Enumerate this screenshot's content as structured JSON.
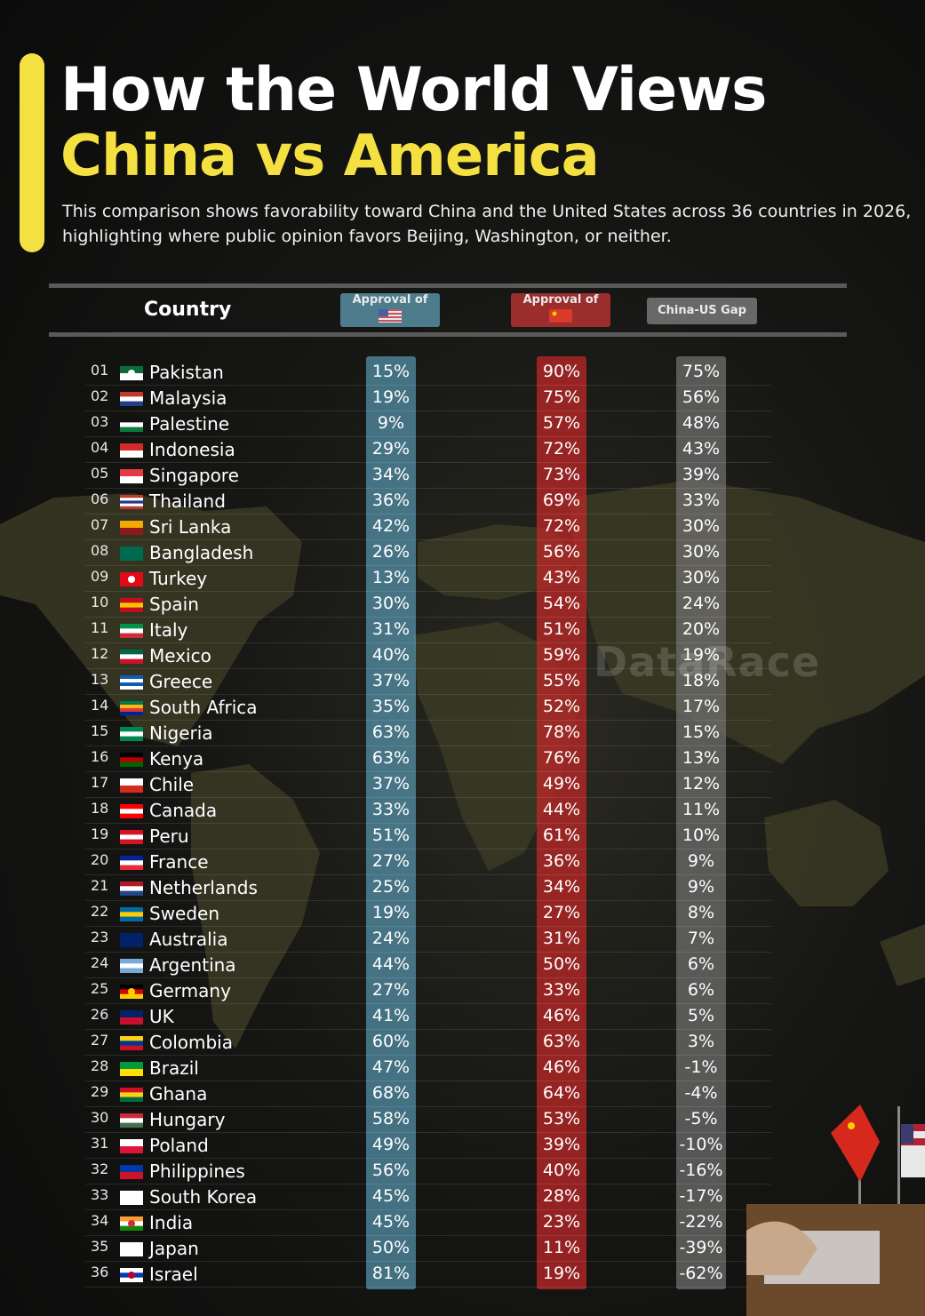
{
  "header": {
    "title_line1": "How the World Views",
    "title_line2": "China vs America",
    "subtitle": "This comparison shows favorability toward China and the United States across 36 countries in 2026, highlighting where public opinion favors Beijing, Washington, or neither."
  },
  "colors": {
    "accent": "#f5e042",
    "usa": "#4d7c8c",
    "china": "#9b2d2d",
    "gap": "#686868"
  },
  "watermark": "DataRace",
  "chart_data": {
    "type": "table",
    "columns": {
      "country": "Country",
      "usa": "Approval of",
      "china": "Approval of",
      "gap": "China-US Gap"
    },
    "column_flags": {
      "usa": "us-flag-icon",
      "china": "china-flag-icon"
    },
    "rows": [
      {
        "rank": "01",
        "country": "Pakistan",
        "usa": "15%",
        "china": "90%",
        "gap": "75%"
      },
      {
        "rank": "02",
        "country": "Malaysia",
        "usa": "19%",
        "china": "75%",
        "gap": "56%"
      },
      {
        "rank": "03",
        "country": "Palestine",
        "usa": "9%",
        "china": "57%",
        "gap": "48%"
      },
      {
        "rank": "04",
        "country": "Indonesia",
        "usa": "29%",
        "china": "72%",
        "gap": "43%"
      },
      {
        "rank": "05",
        "country": "Singapore",
        "usa": "34%",
        "china": "73%",
        "gap": "39%"
      },
      {
        "rank": "06",
        "country": "Thailand",
        "usa": "36%",
        "china": "69%",
        "gap": "33%"
      },
      {
        "rank": "07",
        "country": "Sri Lanka",
        "usa": "42%",
        "china": "72%",
        "gap": "30%"
      },
      {
        "rank": "08",
        "country": "Bangladesh",
        "usa": "26%",
        "china": "56%",
        "gap": "30%"
      },
      {
        "rank": "09",
        "country": "Turkey",
        "usa": "13%",
        "china": "43%",
        "gap": "30%"
      },
      {
        "rank": "10",
        "country": "Spain",
        "usa": "30%",
        "china": "54%",
        "gap": "24%"
      },
      {
        "rank": "11",
        "country": "Italy",
        "usa": "31%",
        "china": "51%",
        "gap": "20%"
      },
      {
        "rank": "12",
        "country": "Mexico",
        "usa": "40%",
        "china": "59%",
        "gap": "19%"
      },
      {
        "rank": "13",
        "country": "Greece",
        "usa": "37%",
        "china": "55%",
        "gap": "18%"
      },
      {
        "rank": "14",
        "country": "South Africa",
        "usa": "35%",
        "china": "52%",
        "gap": "17%"
      },
      {
        "rank": "15",
        "country": "Nigeria",
        "usa": "63%",
        "china": "78%",
        "gap": "15%"
      },
      {
        "rank": "16",
        "country": "Kenya",
        "usa": "63%",
        "china": "76%",
        "gap": "13%"
      },
      {
        "rank": "17",
        "country": "Chile",
        "usa": "37%",
        "china": "49%",
        "gap": "12%"
      },
      {
        "rank": "18",
        "country": "Canada",
        "usa": "33%",
        "china": "44%",
        "gap": "11%"
      },
      {
        "rank": "19",
        "country": "Peru",
        "usa": "51%",
        "china": "61%",
        "gap": "10%"
      },
      {
        "rank": "20",
        "country": "France",
        "usa": "27%",
        "china": "36%",
        "gap": "9%"
      },
      {
        "rank": "21",
        "country": "Netherlands",
        "usa": "25%",
        "china": "34%",
        "gap": "9%"
      },
      {
        "rank": "22",
        "country": "Sweden",
        "usa": "19%",
        "china": "27%",
        "gap": "8%"
      },
      {
        "rank": "23",
        "country": "Australia",
        "usa": "24%",
        "china": "31%",
        "gap": "7%"
      },
      {
        "rank": "24",
        "country": "Argentina",
        "usa": "44%",
        "china": "50%",
        "gap": "6%"
      },
      {
        "rank": "25",
        "country": "Germany",
        "usa": "27%",
        "china": "33%",
        "gap": "6%"
      },
      {
        "rank": "26",
        "country": "UK",
        "usa": "41%",
        "china": "46%",
        "gap": "5%"
      },
      {
        "rank": "27",
        "country": "Colombia",
        "usa": "60%",
        "china": "63%",
        "gap": "3%"
      },
      {
        "rank": "28",
        "country": "Brazil",
        "usa": "47%",
        "china": "46%",
        "gap": "-1%"
      },
      {
        "rank": "29",
        "country": "Ghana",
        "usa": "68%",
        "china": "64%",
        "gap": "-4%"
      },
      {
        "rank": "30",
        "country": "Hungary",
        "usa": "58%",
        "china": "53%",
        "gap": "-5%"
      },
      {
        "rank": "31",
        "country": "Poland",
        "usa": "49%",
        "china": "39%",
        "gap": "-10%"
      },
      {
        "rank": "32",
        "country": "Philippines",
        "usa": "56%",
        "china": "40%",
        "gap": "-16%"
      },
      {
        "rank": "33",
        "country": "South Korea",
        "usa": "45%",
        "china": "28%",
        "gap": "-17%"
      },
      {
        "rank": "34",
        "country": "India",
        "usa": "45%",
        "china": "23%",
        "gap": "-22%"
      },
      {
        "rank": "35",
        "country": "Japan",
        "usa": "50%",
        "china": "11%",
        "gap": "-39%"
      },
      {
        "rank": "36",
        "country": "Israel",
        "usa": "81%",
        "china": "19%",
        "gap": "-62%"
      }
    ]
  }
}
